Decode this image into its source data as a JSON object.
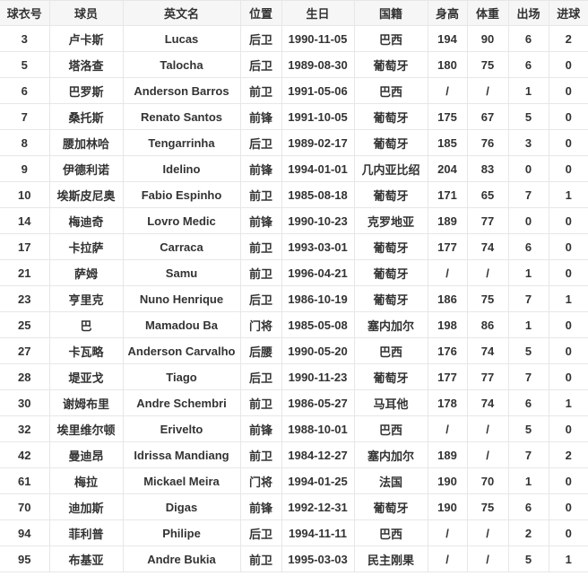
{
  "table": {
    "columns": [
      "球衣号",
      "球员",
      "英文名",
      "位置",
      "生日",
      "国籍",
      "身高",
      "体重",
      "出场",
      "进球"
    ],
    "rows": [
      [
        "3",
        "卢卡斯",
        "Lucas",
        "后卫",
        "1990-11-05",
        "巴西",
        "194",
        "90",
        "6",
        "2"
      ],
      [
        "5",
        "塔洛查",
        "Talocha",
        "后卫",
        "1989-08-30",
        "葡萄牙",
        "180",
        "75",
        "6",
        "0"
      ],
      [
        "6",
        "巴罗斯",
        "Anderson Barros",
        "前卫",
        "1991-05-06",
        "巴西",
        "/",
        "/",
        "1",
        "0"
      ],
      [
        "7",
        "桑托斯",
        "Renato Santos",
        "前锋",
        "1991-10-05",
        "葡萄牙",
        "175",
        "67",
        "5",
        "0"
      ],
      [
        "8",
        "腰加林哈",
        "Tengarrinha",
        "后卫",
        "1989-02-17",
        "葡萄牙",
        "185",
        "76",
        "3",
        "0"
      ],
      [
        "9",
        "伊德利诺",
        "Idelino",
        "前锋",
        "1994-01-01",
        "几内亚比绍",
        "204",
        "83",
        "0",
        "0"
      ],
      [
        "10",
        "埃斯皮尼奥",
        "Fabio Espinho",
        "前卫",
        "1985-08-18",
        "葡萄牙",
        "171",
        "65",
        "7",
        "1"
      ],
      [
        "14",
        "梅迪奇",
        "Lovro Medic",
        "前锋",
        "1990-10-23",
        "克罗地亚",
        "189",
        "77",
        "0",
        "0"
      ],
      [
        "17",
        "卡拉萨",
        "Carraca",
        "前卫",
        "1993-03-01",
        "葡萄牙",
        "177",
        "74",
        "6",
        "0"
      ],
      [
        "21",
        "萨姆",
        "Samu",
        "前卫",
        "1996-04-21",
        "葡萄牙",
        "/",
        "/",
        "1",
        "0"
      ],
      [
        "23",
        "亨里克",
        "Nuno Henrique",
        "后卫",
        "1986-10-19",
        "葡萄牙",
        "186",
        "75",
        "7",
        "1"
      ],
      [
        "25",
        "巴",
        "Mamadou Ba",
        "门将",
        "1985-05-08",
        "塞内加尔",
        "198",
        "86",
        "1",
        "0"
      ],
      [
        "27",
        "卡瓦略",
        "Anderson Carvalho",
        "后腰",
        "1990-05-20",
        "巴西",
        "176",
        "74",
        "5",
        "0"
      ],
      [
        "28",
        "堤亚戈",
        "Tiago",
        "后卫",
        "1990-11-23",
        "葡萄牙",
        "177",
        "77",
        "7",
        "0"
      ],
      [
        "30",
        "谢姆布里",
        "Andre Schembri",
        "前卫",
        "1986-05-27",
        "马耳他",
        "178",
        "74",
        "6",
        "1"
      ],
      [
        "32",
        "埃里维尔顿",
        "Erivelto",
        "前锋",
        "1988-10-01",
        "巴西",
        "/",
        "/",
        "5",
        "0"
      ],
      [
        "42",
        "曼迪昂",
        "Idrissa Mandiang",
        "前卫",
        "1984-12-27",
        "塞内加尔",
        "189",
        "/",
        "7",
        "2"
      ],
      [
        "61",
        "梅拉",
        "Mickael Meira",
        "门将",
        "1994-01-25",
        "法国",
        "190",
        "70",
        "1",
        "0"
      ],
      [
        "70",
        "迪加斯",
        "Digas",
        "前锋",
        "1992-12-31",
        "葡萄牙",
        "190",
        "75",
        "6",
        "0"
      ],
      [
        "94",
        "菲利普",
        "Philipe",
        "后卫",
        "1994-11-11",
        "巴西",
        "/",
        "/",
        "2",
        "0"
      ],
      [
        "95",
        "布基亚",
        "Andre Bukia",
        "前卫",
        "1995-03-03",
        "民主刚果",
        "/",
        "/",
        "5",
        "1"
      ]
    ]
  },
  "colors": {
    "header_bg": "#f6f6f6",
    "border": "#e7e7e7",
    "text": "#333333",
    "row_bg": "#ffffff"
  }
}
